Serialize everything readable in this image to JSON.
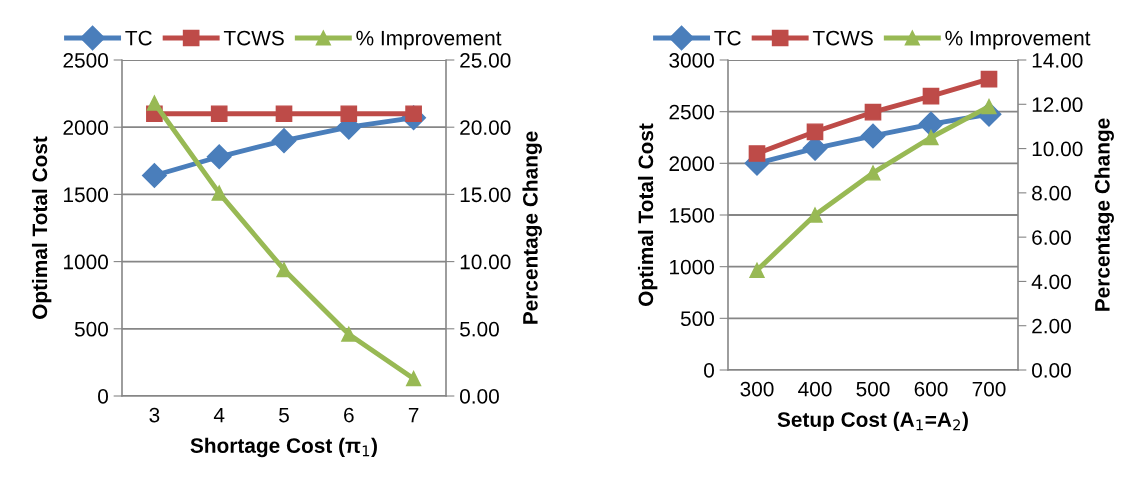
{
  "chart_data": [
    {
      "type": "line",
      "xlabel": "Shortage Cost (π$_{1}$)",
      "ylabel": "Optimal Total Cost",
      "y2label": "Percentage Change",
      "categories": [
        "3",
        "4",
        "5",
        "6",
        "7"
      ],
      "series": [
        {
          "name": "TC",
          "color": "#4a7ebb",
          "marker": "diamond",
          "values": [
            1640,
            1780,
            1900,
            2000,
            2070
          ]
        },
        {
          "name": "TCWS",
          "color": "#be4b48",
          "marker": "square",
          "values": [
            2100,
            2100,
            2100,
            2100,
            2100
          ]
        },
        {
          "name": "% Improvement",
          "color": "#98b954",
          "marker": "triangle",
          "axis": "y2",
          "values": [
            21.8,
            15.1,
            9.4,
            4.6,
            1.3
          ]
        }
      ],
      "ylim": [
        0,
        2500
      ],
      "yticks": [
        0,
        500,
        1000,
        1500,
        2000,
        2500
      ],
      "y2lim": [
        0,
        25
      ],
      "y2ticks": [
        {
          "value": 0,
          "label": "0.00"
        },
        {
          "value": 5,
          "label": "5.00"
        },
        {
          "value": 10,
          "label": "10.00"
        },
        {
          "value": 15,
          "label": "15.00"
        },
        {
          "value": 20,
          "label": "20.00"
        },
        {
          "value": 25,
          "label": "25.00"
        }
      ],
      "grid": "y",
      "legend": "top"
    },
    {
      "type": "line",
      "xlabel": "Setup Cost (A$_{1}$=A$_{2}$)",
      "ylabel": "Optimal Total Cost",
      "y2label": "Percentage Change",
      "categories": [
        "300",
        "400",
        "500",
        "600",
        "700"
      ],
      "series": [
        {
          "name": "TC",
          "color": "#4a7ebb",
          "marker": "diamond",
          "values": [
            2000,
            2145,
            2265,
            2380,
            2475
          ]
        },
        {
          "name": "TCWS",
          "color": "#be4b48",
          "marker": "square",
          "values": [
            2095,
            2305,
            2495,
            2650,
            2815
          ]
        },
        {
          "name": "% Improvement",
          "color": "#98b954",
          "marker": "triangle",
          "axis": "y2",
          "values": [
            4.5,
            7.0,
            8.9,
            10.5,
            11.9
          ]
        }
      ],
      "ylim": [
        0,
        3000
      ],
      "yticks": [
        0,
        500,
        1000,
        1500,
        2000,
        2500,
        3000
      ],
      "y2lim": [
        0,
        14
      ],
      "y2ticks": [
        {
          "value": 0,
          "label": "0.00"
        },
        {
          "value": 2,
          "label": "2.00"
        },
        {
          "value": 4,
          "label": "4.00"
        },
        {
          "value": 6,
          "label": "6.00"
        },
        {
          "value": 8,
          "label": "8.00"
        },
        {
          "value": 10,
          "label": "10.00"
        },
        {
          "value": 12,
          "label": "12.00"
        },
        {
          "value": 14,
          "label": "14.00"
        }
      ],
      "grid": "y",
      "legend": "top"
    }
  ]
}
